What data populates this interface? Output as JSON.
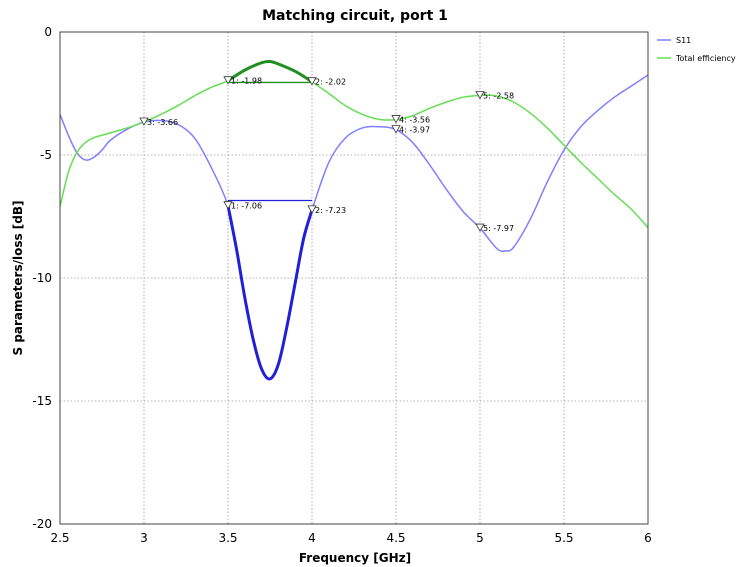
{
  "chart_data": {
    "type": "line",
    "title": "Matching circuit, port 1",
    "xlabel": "Frequency [GHz]",
    "ylabel": "S parameters/loss [dB]",
    "xlim": [
      2.5,
      6
    ],
    "ylim": [
      -20,
      0
    ],
    "xticks": [
      "2.5",
      "3",
      "3.5",
      "4",
      "4.5",
      "5",
      "5.5",
      "6"
    ],
    "yticks": [
      "0",
      "-5",
      "-10",
      "-15",
      "-20"
    ],
    "grid": true,
    "legend_position": "right",
    "series": [
      {
        "name": "S11",
        "color": "#7f7fff",
        "highlight_color": "#2020d8",
        "highlight_range": [
          3.5,
          4.0
        ],
        "points": [
          [
            2.5,
            -3.35
          ],
          [
            2.55,
            -4.2
          ],
          [
            2.6,
            -4.9
          ],
          [
            2.65,
            -5.2
          ],
          [
            2.7,
            -5.1
          ],
          [
            2.75,
            -4.8
          ],
          [
            2.8,
            -4.4
          ],
          [
            2.9,
            -3.95
          ],
          [
            3.0,
            -3.66
          ],
          [
            3.1,
            -3.6
          ],
          [
            3.2,
            -3.75
          ],
          [
            3.3,
            -4.3
          ],
          [
            3.4,
            -5.5
          ],
          [
            3.5,
            -7.06
          ],
          [
            3.55,
            -8.8
          ],
          [
            3.6,
            -10.8
          ],
          [
            3.65,
            -12.5
          ],
          [
            3.7,
            -13.7
          ],
          [
            3.75,
            -14.1
          ],
          [
            3.8,
            -13.5
          ],
          [
            3.85,
            -12.0
          ],
          [
            3.9,
            -10.2
          ],
          [
            3.95,
            -8.4
          ],
          [
            4.0,
            -7.23
          ],
          [
            4.1,
            -5.3
          ],
          [
            4.2,
            -4.3
          ],
          [
            4.3,
            -3.9
          ],
          [
            4.4,
            -3.85
          ],
          [
            4.5,
            -3.97
          ],
          [
            4.6,
            -4.5
          ],
          [
            4.7,
            -5.4
          ],
          [
            4.8,
            -6.4
          ],
          [
            4.9,
            -7.3
          ],
          [
            5.0,
            -7.97
          ],
          [
            5.1,
            -8.8
          ],
          [
            5.15,
            -8.9
          ],
          [
            5.2,
            -8.75
          ],
          [
            5.3,
            -7.6
          ],
          [
            5.4,
            -6.1
          ],
          [
            5.5,
            -4.8
          ],
          [
            5.6,
            -3.85
          ],
          [
            5.7,
            -3.2
          ],
          [
            5.8,
            -2.65
          ],
          [
            5.9,
            -2.2
          ],
          [
            6.0,
            -1.75
          ]
        ]
      },
      {
        "name": "Total efficiency",
        "color": "#66dd55",
        "highlight_color": "#1f8f1f",
        "highlight_range": [
          3.5,
          4.0
        ],
        "points": [
          [
            2.5,
            -7.1
          ],
          [
            2.55,
            -5.7
          ],
          [
            2.6,
            -4.9
          ],
          [
            2.65,
            -4.5
          ],
          [
            2.7,
            -4.3
          ],
          [
            2.8,
            -4.1
          ],
          [
            2.9,
            -3.9
          ],
          [
            3.0,
            -3.66
          ],
          [
            3.1,
            -3.35
          ],
          [
            3.2,
            -3.0
          ],
          [
            3.3,
            -2.6
          ],
          [
            3.4,
            -2.25
          ],
          [
            3.5,
            -1.98
          ],
          [
            3.6,
            -1.55
          ],
          [
            3.7,
            -1.25
          ],
          [
            3.75,
            -1.2
          ],
          [
            3.8,
            -1.3
          ],
          [
            3.9,
            -1.6
          ],
          [
            4.0,
            -2.02
          ],
          [
            4.1,
            -2.5
          ],
          [
            4.2,
            -3.0
          ],
          [
            4.3,
            -3.35
          ],
          [
            4.4,
            -3.55
          ],
          [
            4.5,
            -3.56
          ],
          [
            4.6,
            -3.4
          ],
          [
            4.7,
            -3.1
          ],
          [
            4.8,
            -2.85
          ],
          [
            4.9,
            -2.65
          ],
          [
            5.0,
            -2.58
          ],
          [
            5.1,
            -2.6
          ],
          [
            5.2,
            -2.85
          ],
          [
            5.3,
            -3.3
          ],
          [
            5.4,
            -3.9
          ],
          [
            5.5,
            -4.6
          ],
          [
            5.6,
            -5.3
          ],
          [
            5.7,
            -5.95
          ],
          [
            5.8,
            -6.6
          ],
          [
            5.9,
            -7.2
          ],
          [
            6.0,
            -7.95
          ]
        ]
      }
    ],
    "bandwidth_lines": [
      {
        "series": "S11",
        "x": [
          3.5,
          4.0
        ],
        "y": -6.85
      },
      {
        "series": "Total efficiency",
        "x": [
          3.5,
          4.0
        ],
        "y": -2.05
      }
    ],
    "markers": [
      {
        "label": "1: -1.98",
        "x": 3.5,
        "y": -1.98,
        "series": "Total efficiency"
      },
      {
        "label": "2: -2.02",
        "x": 4.0,
        "y": -2.02,
        "series": "Total efficiency"
      },
      {
        "label": "3: -3.66",
        "x": 3.0,
        "y": -3.66,
        "series": "S11"
      },
      {
        "label": "4: -3.56",
        "x": 4.5,
        "y": -3.56,
        "series": "Total efficiency"
      },
      {
        "label": "4: -3.97",
        "x": 4.5,
        "y": -3.97,
        "series": "S11"
      },
      {
        "label": "5: -2.58",
        "x": 5.0,
        "y": -2.58,
        "series": "Total efficiency"
      },
      {
        "label": "1: -7.06",
        "x": 3.5,
        "y": -7.06,
        "series": "S11"
      },
      {
        "label": "2: -7.23",
        "x": 4.0,
        "y": -7.23,
        "series": "S11"
      },
      {
        "label": "5: -7.97",
        "x": 5.0,
        "y": -7.97,
        "series": "S11"
      }
    ]
  }
}
